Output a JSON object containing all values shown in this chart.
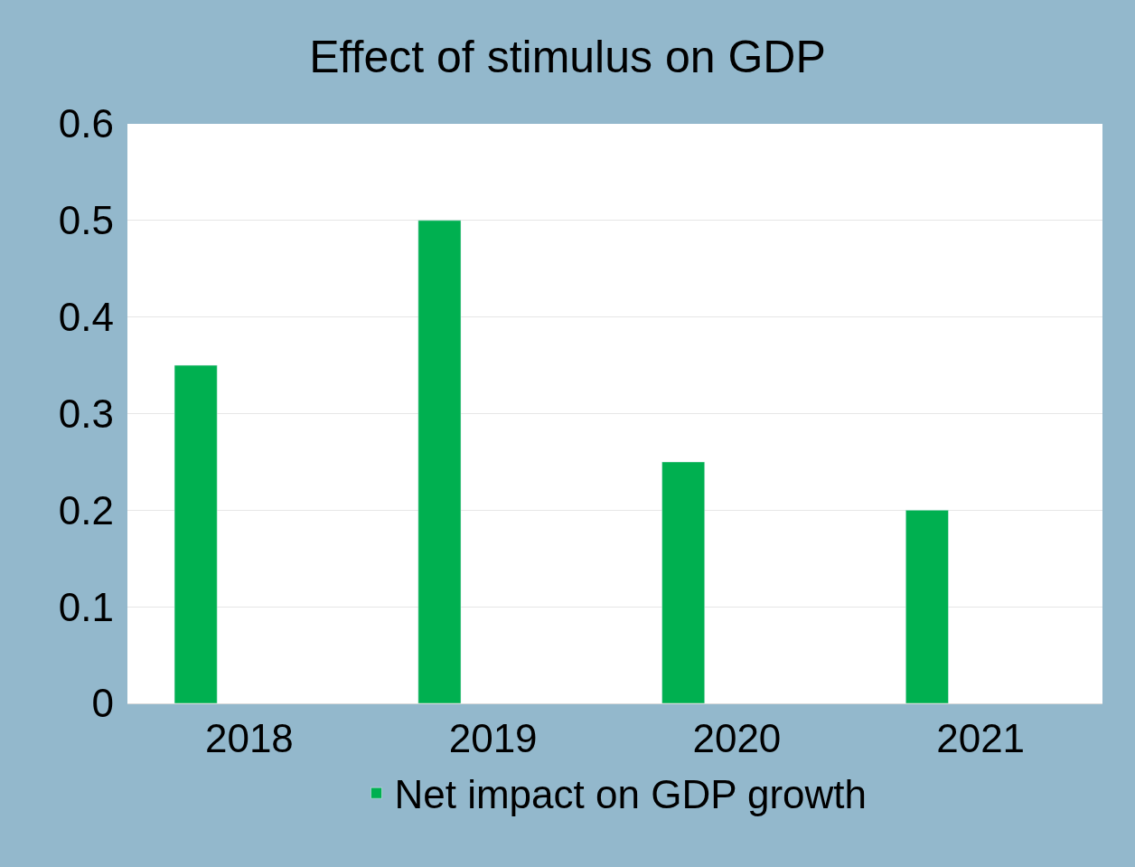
{
  "chart_data": {
    "type": "bar",
    "title": "Effect of stimulus on GDP",
    "categories": [
      "2018",
      "2019",
      "2020",
      "2021"
    ],
    "series": [
      {
        "name": "Net impact on GDP growth",
        "color": "#00b050",
        "values": [
          0.35,
          0.5,
          0.25,
          0.2
        ]
      }
    ],
    "ylim": [
      0,
      0.6
    ],
    "yticks": [
      0,
      0.1,
      0.2,
      0.3,
      0.4,
      0.5,
      0.6
    ],
    "grid": "y",
    "legend": "bottom"
  }
}
